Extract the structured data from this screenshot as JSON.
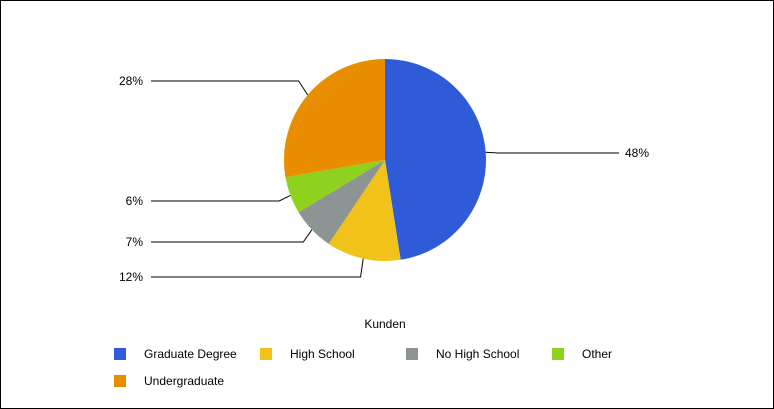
{
  "chart_data": {
    "type": "pie",
    "title": "",
    "xlabel": "Kunden",
    "categories": [
      "Graduate Degree",
      "High School",
      "No High School",
      "Other",
      "Undergraduate"
    ],
    "values": [
      48,
      12,
      7,
      6,
      28
    ],
    "data_labels": [
      "48%",
      "12%",
      "7%",
      "6%",
      "28%"
    ],
    "colors": [
      "#2f5bd9",
      "#f1c31a",
      "#8c9494",
      "#8ed11f",
      "#e98e00"
    ],
    "legend": {
      "placement": "bottom",
      "entries": [
        "Graduate Degree",
        "High School",
        "No High School",
        "Other",
        "Undergraduate"
      ]
    }
  }
}
